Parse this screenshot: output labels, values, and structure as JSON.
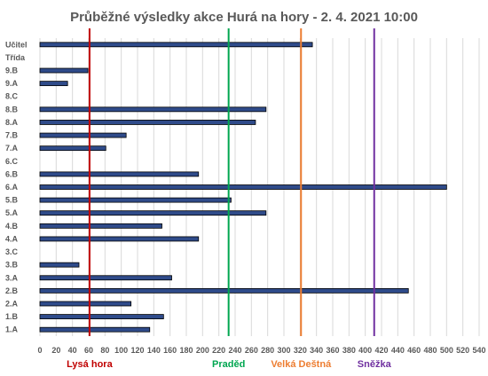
{
  "chart_data": {
    "type": "bar",
    "orientation": "horizontal",
    "title": "Průběžné výsledky akce Hurá na hory - 2. 4. 2021 10:00",
    "xlabel": "",
    "ylabel": "",
    "xlim": [
      0,
      540
    ],
    "x_tick_step": 20,
    "grid": true,
    "bar_color": "#2F4B8A",
    "categories": [
      "1.A",
      "1.B",
      "2.A",
      "2.B",
      "3.A",
      "3.B",
      "3.C",
      "4.A",
      "4.B",
      "5.A",
      "5.B",
      "6.A",
      "6.B",
      "6.C",
      "7.A",
      "7.B",
      "8.A",
      "8.B",
      "8.C",
      "9.A",
      "9.B",
      "Třída",
      "Učitel"
    ],
    "values": [
      135,
      152,
      112,
      453,
      162,
      48,
      0,
      195,
      150,
      278,
      235,
      500,
      195,
      0,
      81,
      106,
      265,
      278,
      0,
      34,
      59,
      0,
      335
    ],
    "markers": [
      {
        "label": "Lysá hora",
        "value": 61,
        "color": "#C00000"
      },
      {
        "label": "Praděd",
        "value": 232,
        "color": "#00A650"
      },
      {
        "label": "Velká Deštná",
        "value": 321,
        "color": "#ED7D31"
      },
      {
        "label": "Sněžka",
        "value": 411,
        "color": "#7030A0"
      }
    ]
  }
}
